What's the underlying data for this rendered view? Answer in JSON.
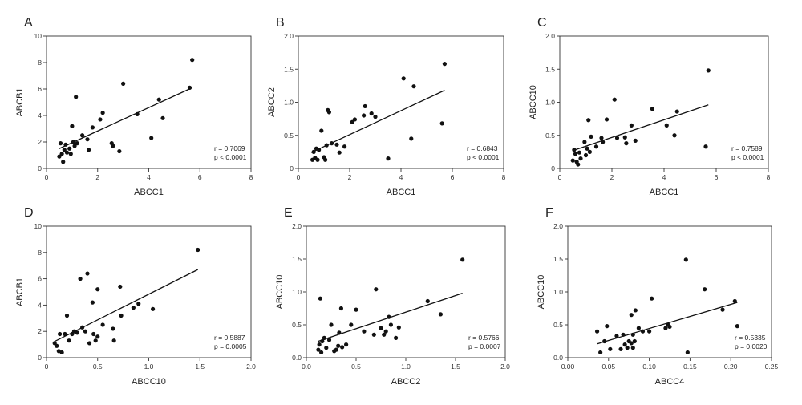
{
  "chart_data": [
    {
      "type": "scatter",
      "panel": "A",
      "xlabel": "ABCC1",
      "ylabel": "ABCB1",
      "xlim": [
        0,
        8
      ],
      "ylim": [
        0,
        10
      ],
      "xticks": [
        "0",
        "2",
        "4",
        "6",
        "8"
      ],
      "yticks": [
        "0",
        "2",
        "4",
        "6",
        "8",
        "10"
      ],
      "stats": [
        "r = 0.7069",
        "p < 0.0001"
      ],
      "points": [
        [
          0.5,
          0.9
        ],
        [
          0.55,
          1.9
        ],
        [
          0.6,
          1.1
        ],
        [
          0.65,
          0.5
        ],
        [
          0.7,
          1.4
        ],
        [
          0.75,
          1.8
        ],
        [
          0.8,
          1.2
        ],
        [
          0.9,
          1.5
        ],
        [
          0.95,
          1.1
        ],
        [
          1.0,
          3.2
        ],
        [
          1.05,
          2.0
        ],
        [
          1.1,
          1.7
        ],
        [
          1.15,
          5.4
        ],
        [
          1.2,
          1.9
        ],
        [
          1.4,
          2.5
        ],
        [
          1.6,
          2.2
        ],
        [
          1.65,
          1.4
        ],
        [
          1.8,
          3.1
        ],
        [
          2.1,
          3.7
        ],
        [
          2.2,
          4.2
        ],
        [
          2.55,
          1.9
        ],
        [
          2.6,
          1.7
        ],
        [
          2.85,
          1.3
        ],
        [
          3.0,
          6.4
        ],
        [
          3.55,
          4.1
        ],
        [
          4.1,
          2.3
        ],
        [
          4.4,
          5.2
        ],
        [
          4.55,
          3.8
        ],
        [
          5.6,
          6.1
        ],
        [
          5.7,
          8.2
        ]
      ],
      "fit": [
        [
          0.5,
          1.5
        ],
        [
          5.7,
          6.1
        ]
      ]
    },
    {
      "type": "scatter",
      "panel": "B",
      "xlabel": "ABCC1",
      "ylabel": "ABCC2",
      "xlim": [
        0,
        8
      ],
      "ylim": [
        0,
        2.0
      ],
      "xticks": [
        "0",
        "2",
        "4",
        "6",
        "8"
      ],
      "yticks": [
        "0",
        "0.5",
        "1.0",
        "1.5",
        "2.0"
      ],
      "stats": [
        "r = 0.6843",
        "p < 0.0001"
      ],
      "points": [
        [
          0.55,
          0.13
        ],
        [
          0.6,
          0.25
        ],
        [
          0.65,
          0.16
        ],
        [
          0.7,
          0.3
        ],
        [
          0.75,
          0.13
        ],
        [
          0.8,
          0.28
        ],
        [
          0.9,
          0.57
        ],
        [
          1.0,
          0.17
        ],
        [
          1.05,
          0.13
        ],
        [
          1.1,
          0.35
        ],
        [
          1.15,
          0.88
        ],
        [
          1.2,
          0.85
        ],
        [
          1.3,
          0.38
        ],
        [
          1.5,
          0.36
        ],
        [
          1.6,
          0.24
        ],
        [
          1.8,
          0.33
        ],
        [
          2.1,
          0.7
        ],
        [
          2.2,
          0.74
        ],
        [
          2.55,
          0.8
        ],
        [
          2.6,
          0.94
        ],
        [
          2.85,
          0.83
        ],
        [
          3.0,
          0.78
        ],
        [
          3.5,
          0.15
        ],
        [
          4.1,
          1.36
        ],
        [
          4.4,
          0.45
        ],
        [
          4.5,
          1.24
        ],
        [
          5.6,
          0.68
        ],
        [
          5.7,
          1.58
        ]
      ],
      "fit": [
        [
          0.5,
          0.24
        ],
        [
          5.7,
          1.18
        ]
      ]
    },
    {
      "type": "scatter",
      "panel": "C",
      "xlabel": "ABCC1",
      "ylabel": "ABCC10",
      "xlim": [
        0,
        8
      ],
      "ylim": [
        0,
        2.0
      ],
      "xticks": [
        "0",
        "2",
        "4",
        "6",
        "8"
      ],
      "yticks": [
        "0",
        "0.5",
        "1.0",
        "1.5",
        "2.0"
      ],
      "stats": [
        "r = 0.7589",
        "p < 0.0001"
      ],
      "points": [
        [
          0.5,
          0.12
        ],
        [
          0.55,
          0.28
        ],
        [
          0.6,
          0.22
        ],
        [
          0.65,
          0.1
        ],
        [
          0.7,
          0.06
        ],
        [
          0.75,
          0.24
        ],
        [
          0.8,
          0.15
        ],
        [
          0.95,
          0.4
        ],
        [
          1.0,
          0.2
        ],
        [
          1.05,
          0.3
        ],
        [
          1.1,
          0.73
        ],
        [
          1.15,
          0.25
        ],
        [
          1.2,
          0.48
        ],
        [
          1.4,
          0.33
        ],
        [
          1.6,
          0.46
        ],
        [
          1.65,
          0.4
        ],
        [
          1.8,
          0.74
        ],
        [
          2.1,
          1.04
        ],
        [
          2.2,
          0.46
        ],
        [
          2.5,
          0.47
        ],
        [
          2.55,
          0.38
        ],
        [
          2.75,
          0.65
        ],
        [
          2.9,
          0.42
        ],
        [
          3.55,
          0.9
        ],
        [
          4.1,
          0.65
        ],
        [
          4.4,
          0.5
        ],
        [
          4.5,
          0.86
        ],
        [
          5.6,
          0.33
        ],
        [
          5.7,
          1.48
        ]
      ],
      "fit": [
        [
          0.5,
          0.27
        ],
        [
          5.7,
          0.96
        ]
      ]
    },
    {
      "type": "scatter",
      "panel": "D",
      "xlabel": "ABCC10",
      "ylabel": "ABCB1",
      "xlim": [
        0,
        2.0
      ],
      "ylim": [
        0,
        10
      ],
      "xticks": [
        "0",
        "0.5",
        "1.0",
        "1.5",
        "2.0"
      ],
      "yticks": [
        "0",
        "2",
        "4",
        "6",
        "8",
        "10"
      ],
      "stats": [
        "r = 0.5887",
        "p = 0.0005"
      ],
      "points": [
        [
          0.08,
          1.1
        ],
        [
          0.1,
          0.9
        ],
        [
          0.12,
          0.5
        ],
        [
          0.13,
          1.8
        ],
        [
          0.15,
          0.4
        ],
        [
          0.18,
          1.8
        ],
        [
          0.2,
          3.2
        ],
        [
          0.22,
          1.3
        ],
        [
          0.25,
          1.8
        ],
        [
          0.27,
          2.0
        ],
        [
          0.3,
          1.9
        ],
        [
          0.33,
          6.0
        ],
        [
          0.35,
          2.3
        ],
        [
          0.38,
          2.0
        ],
        [
          0.4,
          6.4
        ],
        [
          0.42,
          1.1
        ],
        [
          0.45,
          4.2
        ],
        [
          0.46,
          1.8
        ],
        [
          0.48,
          1.3
        ],
        [
          0.5,
          5.2
        ],
        [
          0.5,
          1.6
        ],
        [
          0.55,
          2.5
        ],
        [
          0.65,
          2.2
        ],
        [
          0.66,
          1.3
        ],
        [
          0.72,
          5.4
        ],
        [
          0.73,
          3.2
        ],
        [
          0.85,
          3.8
        ],
        [
          0.9,
          4.1
        ],
        [
          1.04,
          3.7
        ],
        [
          1.48,
          8.2
        ]
      ],
      "fit": [
        [
          0.07,
          1.2
        ],
        [
          1.48,
          6.7
        ]
      ]
    },
    {
      "type": "scatter",
      "panel": "E",
      "xlabel": "ABCC2",
      "ylabel": "ABCC10",
      "xlim": [
        0,
        2.0
      ],
      "ylim": [
        0,
        2.0
      ],
      "xticks": [
        "0.0",
        "0.5",
        "1.0",
        "1.5",
        "2.0"
      ],
      "yticks": [
        "0.0",
        "0.5",
        "1.0",
        "1.5",
        "2.0"
      ],
      "stats": [
        "r = 0.5766",
        "p = 0.0007"
      ],
      "points": [
        [
          0.12,
          0.12
        ],
        [
          0.13,
          0.2
        ],
        [
          0.14,
          0.9
        ],
        [
          0.15,
          0.08
        ],
        [
          0.16,
          0.25
        ],
        [
          0.18,
          0.3
        ],
        [
          0.2,
          0.15
        ],
        [
          0.23,
          0.27
        ],
        [
          0.25,
          0.5
        ],
        [
          0.28,
          0.1
        ],
        [
          0.3,
          0.12
        ],
        [
          0.32,
          0.18
        ],
        [
          0.33,
          0.38
        ],
        [
          0.35,
          0.75
        ],
        [
          0.36,
          0.16
        ],
        [
          0.4,
          0.2
        ],
        [
          0.45,
          0.5
        ],
        [
          0.5,
          0.73
        ],
        [
          0.58,
          0.4
        ],
        [
          0.68,
          0.35
        ],
        [
          0.7,
          1.04
        ],
        [
          0.75,
          0.45
        ],
        [
          0.78,
          0.35
        ],
        [
          0.8,
          0.4
        ],
        [
          0.83,
          0.62
        ],
        [
          0.85,
          0.5
        ],
        [
          0.9,
          0.3
        ],
        [
          0.93,
          0.46
        ],
        [
          1.22,
          0.86
        ],
        [
          1.35,
          0.66
        ],
        [
          1.57,
          1.49
        ]
      ],
      "fit": [
        [
          0.12,
          0.25
        ],
        [
          1.57,
          0.98
        ]
      ]
    },
    {
      "type": "scatter",
      "panel": "F",
      "xlabel": "ABCC4",
      "ylabel": "ABCC10",
      "xlim": [
        0,
        0.25
      ],
      "ylim": [
        0,
        2.0
      ],
      "xticks": [
        "0.00",
        "0.05",
        "0.10",
        "0.15",
        "0.20",
        "0.25"
      ],
      "yticks": [
        "0.0",
        "0.5",
        "1.0",
        "1.5",
        "2.0"
      ],
      "stats": [
        "r = 0.5335",
        "p = 0.0020"
      ],
      "points": [
        [
          0.036,
          0.4
        ],
        [
          0.04,
          0.08
        ],
        [
          0.045,
          0.25
        ],
        [
          0.048,
          0.48
        ],
        [
          0.052,
          0.13
        ],
        [
          0.06,
          0.33
        ],
        [
          0.065,
          0.13
        ],
        [
          0.068,
          0.35
        ],
        [
          0.07,
          0.2
        ],
        [
          0.073,
          0.15
        ],
        [
          0.075,
          0.25
        ],
        [
          0.078,
          0.22
        ],
        [
          0.078,
          0.65
        ],
        [
          0.08,
          0.15
        ],
        [
          0.08,
          0.35
        ],
        [
          0.082,
          0.25
        ],
        [
          0.083,
          0.72
        ],
        [
          0.087,
          0.45
        ],
        [
          0.092,
          0.4
        ],
        [
          0.1,
          0.4
        ],
        [
          0.103,
          0.9
        ],
        [
          0.12,
          0.45
        ],
        [
          0.123,
          0.5
        ],
        [
          0.125,
          0.47
        ],
        [
          0.145,
          1.49
        ],
        [
          0.147,
          0.08
        ],
        [
          0.168,
          1.04
        ],
        [
          0.19,
          0.73
        ],
        [
          0.205,
          0.86
        ],
        [
          0.208,
          0.48
        ]
      ],
      "fit": [
        [
          0.036,
          0.21
        ],
        [
          0.208,
          0.84
        ]
      ]
    }
  ]
}
